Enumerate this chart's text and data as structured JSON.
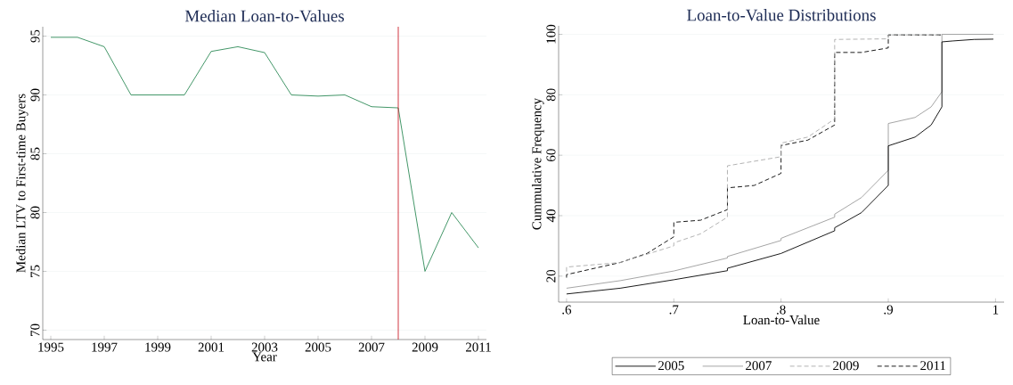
{
  "chart_data": [
    {
      "type": "line",
      "title": "Median Loan-to-Values",
      "xlabel": "Year",
      "ylabel": "Median LTV to First-time Buyers",
      "x": [
        1995,
        1996,
        1997,
        1998,
        1999,
        2000,
        2001,
        2002,
        2003,
        2004,
        2005,
        2006,
        2007,
        2008,
        2009,
        2010,
        2011
      ],
      "values": [
        94.9,
        94.9,
        94.1,
        90,
        90,
        90,
        93.7,
        94.1,
        93.6,
        90,
        89.9,
        90,
        89,
        88.9,
        75,
        80,
        77
      ],
      "color": "#2e8b57",
      "line_style": "solid",
      "marker": "none",
      "xlim": [
        1994.7,
        2011.3
      ],
      "ylim": [
        69.2,
        95.8
      ],
      "xticks": [
        1995,
        1997,
        1999,
        2001,
        2003,
        2005,
        2007,
        2009,
        2011
      ],
      "yticks": [
        70,
        75,
        80,
        85,
        90,
        95
      ],
      "ref_lines": [
        {
          "axis": "x",
          "value": 2008,
          "color": "#cc1f2a"
        }
      ],
      "grid": "y",
      "legend": false
    },
    {
      "type": "line",
      "title": "Loan-to-Value Distributions",
      "xlabel": "Loan-to-Value",
      "ylabel": "Cummulative Frequency",
      "series": [
        {
          "name": "2005",
          "color": "#000000",
          "line_style": "solid",
          "x": [
            0.6,
            0.65,
            0.7,
            0.75,
            0.75,
            0.8,
            0.85,
            0.85,
            0.875,
            0.9,
            0.9,
            0.925,
            0.94,
            0.95,
            0.95,
            0.96,
            0.98,
            0.998
          ],
          "values": [
            14.1,
            16,
            18.8,
            21.8,
            22.6,
            27.5,
            35,
            36,
            41,
            50,
            63.1,
            66,
            70,
            76,
            97.5,
            97.8,
            98.3,
            98.4
          ]
        },
        {
          "name": "2007",
          "color": "#9a9a9a",
          "line_style": "solid",
          "x": [
            0.6,
            0.65,
            0.7,
            0.75,
            0.75,
            0.8,
            0.8,
            0.85,
            0.85,
            0.875,
            0.9,
            0.9,
            0.925,
            0.94,
            0.95,
            0.95,
            0.998
          ],
          "values": [
            16,
            18.5,
            21.7,
            26,
            26.5,
            31.8,
            32.5,
            39.5,
            40.5,
            46,
            55,
            70.5,
            72.5,
            76,
            81,
            100,
            100
          ]
        },
        {
          "name": "2009",
          "color": "#aaaaaa",
          "line_style": "dashed",
          "x": [
            0.6,
            0.6,
            0.65,
            0.7,
            0.7,
            0.725,
            0.75,
            0.75,
            0.8,
            0.8,
            0.825,
            0.85,
            0.85,
            0.9,
            0.9,
            0.95
          ],
          "values": [
            21.5,
            23,
            24.5,
            30,
            31,
            34,
            39.5,
            56.5,
            59.5,
            64,
            66,
            72,
            98.3,
            98.5,
            99.8,
            99.8
          ]
        },
        {
          "name": "2011",
          "color": "#000000",
          "line_style": "dashed",
          "x": [
            0.6,
            0.6,
            0.65,
            0.675,
            0.7,
            0.7,
            0.725,
            0.75,
            0.75,
            0.775,
            0.8,
            0.8,
            0.825,
            0.85,
            0.85,
            0.875,
            0.9,
            0.9,
            0.95
          ],
          "values": [
            19.5,
            20.5,
            24.5,
            27.5,
            33,
            37.8,
            38.5,
            42,
            49.2,
            50,
            54,
            63.2,
            65,
            70,
            94,
            94,
            95.5,
            99.8,
            99.8
          ]
        }
      ],
      "marker": "none",
      "xlim": [
        0.5926,
        1.008
      ],
      "ylim": [
        11.4,
        102.8
      ],
      "xticks": [
        {
          "value": 0.6,
          "label": ".6"
        },
        {
          "value": 0.7,
          "label": ".7"
        },
        {
          "value": 0.8,
          "label": ".8"
        },
        {
          "value": 0.9,
          "label": ".9"
        },
        1
      ],
      "yticks": [
        20,
        40,
        60,
        80,
        100
      ],
      "grid": "y",
      "legend": "bottom"
    }
  ]
}
